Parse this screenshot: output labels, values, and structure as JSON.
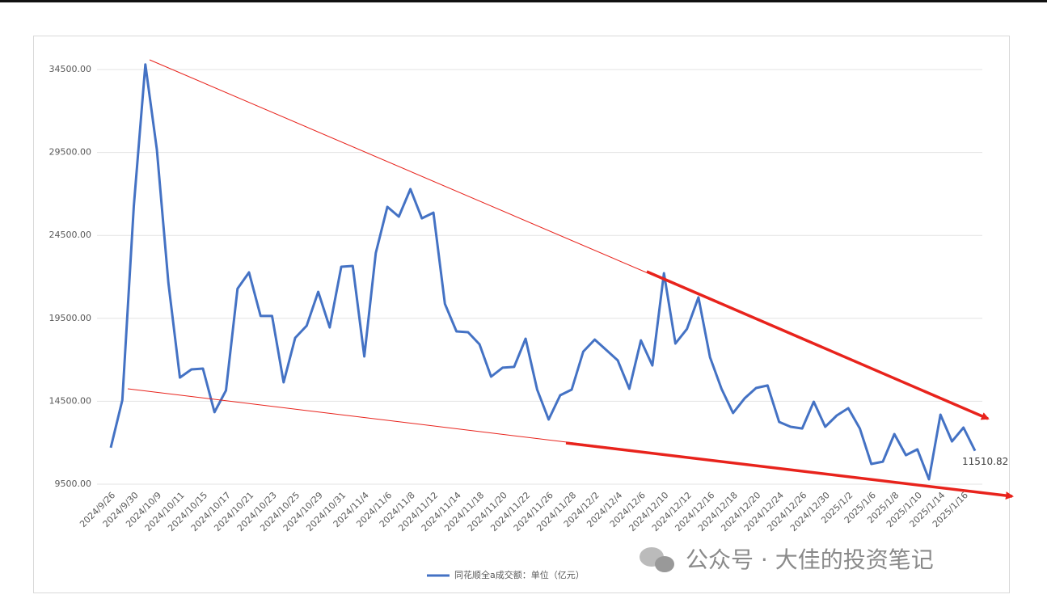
{
  "chart_data": {
    "type": "line",
    "categories": [
      "2024/9/26",
      null,
      "2024/9/30",
      null,
      "2024/10/9",
      null,
      "2024/10/11",
      null,
      "2024/10/15",
      null,
      "2024/10/17",
      null,
      "2024/10/21",
      null,
      "2024/10/23",
      null,
      "2024/10/25",
      null,
      "2024/10/29",
      null,
      "2024/10/31",
      null,
      "2024/11/4",
      null,
      "2024/11/6",
      null,
      "2024/11/8",
      null,
      "2024/11/12",
      null,
      "2024/11/14",
      null,
      "2024/11/18",
      null,
      "2024/11/20",
      null,
      "2024/11/22",
      null,
      "2024/11/26",
      null,
      "2024/11/28",
      null,
      "2024/12/2",
      null,
      "2024/12/4",
      null,
      "2024/12/6",
      null,
      "2024/12/10",
      null,
      "2024/12/12",
      null,
      "2024/12/16",
      null,
      "2024/12/18",
      null,
      "2024/12/20",
      null,
      "2024/12/24",
      null,
      "2024/12/26",
      null,
      "2024/12/30",
      null,
      "2025/1/2",
      null,
      "2025/1/6",
      null,
      "2025/1/8",
      null,
      "2025/1/10",
      null,
      "2025/1/14",
      null,
      "2025/1/16",
      null
    ],
    "series": [
      {
        "name": "同花顺全a成交额：单位（亿元）",
        "color": "#4472c4",
        "values": [
          11700,
          14570,
          26260,
          34800,
          29680,
          21630,
          15930,
          16420,
          16470,
          13840,
          15150,
          21290,
          22270,
          19640,
          19640,
          15640,
          18320,
          19050,
          21100,
          18950,
          22610,
          22660,
          17200,
          23440,
          26220,
          25630,
          27290,
          25530,
          25870,
          20370,
          18710,
          18660,
          17930,
          15980,
          16520,
          16570,
          18270,
          15200,
          13400,
          14860,
          15200,
          17490,
          18220,
          17590,
          16960,
          15250,
          18170,
          16660,
          22220,
          17980,
          18860,
          20760,
          17150,
          15250,
          13790,
          14670,
          15300,
          15450,
          13250,
          12960,
          12860,
          14470,
          12960,
          13640,
          14080,
          12860,
          10720,
          10860,
          12520,
          11250,
          11600,
          9790,
          13690,
          12080,
          12910,
          11510.82
        ]
      }
    ],
    "ylim": [
      9500,
      34500
    ],
    "yticks": [
      {
        "value": 9500,
        "label": "9500.00"
      },
      {
        "value": 14500,
        "label": "14500.00"
      },
      {
        "value": 19500,
        "label": "19500.00"
      },
      {
        "value": 24500,
        "label": "24500.00"
      },
      {
        "value": 29500,
        "label": "29500.00"
      },
      {
        "value": 34500,
        "label": "34500.00"
      }
    ],
    "grid": true,
    "legend": "bottom",
    "watermark": "公众号 · 大佳的投资笔记"
  }
}
